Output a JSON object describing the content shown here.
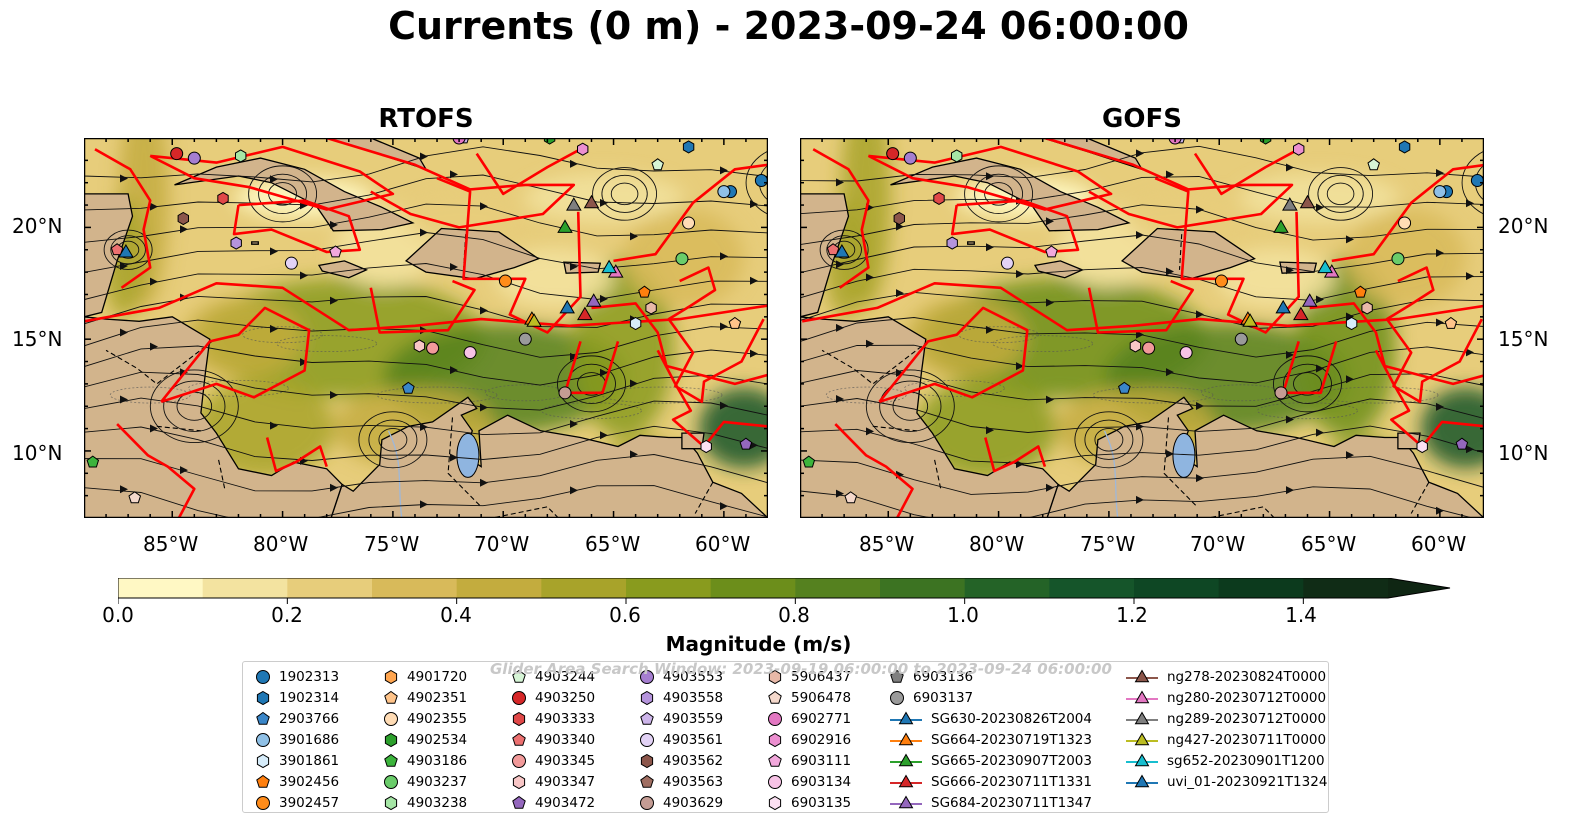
{
  "title": "Currents (0 m) - 2023-09-24 06:00:00",
  "panels": [
    {
      "title": "RTOFS"
    },
    {
      "title": "GOFS"
    }
  ],
  "x_ticks": [
    "85°W",
    "80°W",
    "75°W",
    "70°W",
    "65°W",
    "60°W"
  ],
  "y_ticks": [
    "20°N",
    "15°N",
    "10°N"
  ],
  "colorbar": {
    "label": "Magnitude (m/s)",
    "ticks": [
      "0.0",
      "0.2",
      "0.4",
      "0.6",
      "0.8",
      "1.0",
      "1.2",
      "1.4"
    ],
    "range": [
      0,
      1.5
    ],
    "colors": [
      "#fff8c4",
      "#f3e3a0",
      "#e7cd7b",
      "#d8ba5a",
      "#c3ac3e",
      "#a8a32a",
      "#899b1e",
      "#6c8e1b",
      "#55811f",
      "#3c7322",
      "#246327",
      "#15552a",
      "#0e4724",
      "#0c3a1d",
      "#102c16"
    ]
  },
  "watermark": "Glider Area Search Window: 2023-09-19 06:00:00 to 2023-09-24 06:00:00",
  "legend": [
    {
      "label": "1902313",
      "marker": "circle",
      "color": "#1f77b4"
    },
    {
      "label": "1902314",
      "marker": "hexagon",
      "color": "#1f77b4"
    },
    {
      "label": "2903766",
      "marker": "pentagon",
      "color": "#3a86c8"
    },
    {
      "label": "3901686",
      "marker": "circle",
      "color": "#8fc0e6"
    },
    {
      "label": "3901861",
      "marker": "hexagon",
      "color": "#d6ecfa"
    },
    {
      "label": "3902456",
      "marker": "pentagon",
      "color": "#ff7f0e"
    },
    {
      "label": "3902457",
      "marker": "circle",
      "color": "#ff8c1a"
    },
    {
      "label": "4901720",
      "marker": "hexagon",
      "color": "#ffa54f"
    },
    {
      "label": "4902351",
      "marker": "pentagon",
      "color": "#ffc48a"
    },
    {
      "label": "4902355",
      "marker": "circle",
      "color": "#ffdcb5"
    },
    {
      "label": "4902534",
      "marker": "hexagon",
      "color": "#2ca02c"
    },
    {
      "label": "4903186",
      "marker": "pentagon",
      "color": "#3cb43c"
    },
    {
      "label": "4903237",
      "marker": "circle",
      "color": "#6acc6a"
    },
    {
      "label": "4903238",
      "marker": "hexagon",
      "color": "#a6e6a6"
    },
    {
      "label": "4903244",
      "marker": "pentagon",
      "color": "#d6f5d6"
    },
    {
      "label": "4903250",
      "marker": "circle",
      "color": "#d62728"
    },
    {
      "label": "4903333",
      "marker": "hexagon",
      "color": "#e04848"
    },
    {
      "label": "4903340",
      "marker": "pentagon",
      "color": "#ec7070"
    },
    {
      "label": "4903345",
      "marker": "circle",
      "color": "#f29a9a"
    },
    {
      "label": "4903347",
      "marker": "hexagon",
      "color": "#f8c6c6"
    },
    {
      "label": "4903472",
      "marker": "pentagon",
      "color": "#9467bd"
    },
    {
      "label": "4903553",
      "marker": "circle",
      "color": "#a57ed0"
    },
    {
      "label": "4903558",
      "marker": "hexagon",
      "color": "#b594dc"
    },
    {
      "label": "4903559",
      "marker": "pentagon",
      "color": "#cdb5ea"
    },
    {
      "label": "4903561",
      "marker": "circle",
      "color": "#e2d2f5"
    },
    {
      "label": "4903562",
      "marker": "hexagon",
      "color": "#8c564b"
    },
    {
      "label": "4903563",
      "marker": "pentagon",
      "color": "#a06e62"
    },
    {
      "label": "4903629",
      "marker": "circle",
      "color": "#c49c94"
    },
    {
      "label": "5906437",
      "marker": "hexagon",
      "color": "#e8b9a8"
    },
    {
      "label": "5906478",
      "marker": "pentagon",
      "color": "#f5d9cc"
    },
    {
      "label": "6902771",
      "marker": "circle",
      "color": "#e377c2"
    },
    {
      "label": "6902916",
      "marker": "hexagon",
      "color": "#ec8fd0"
    },
    {
      "label": "6903111",
      "marker": "pentagon",
      "color": "#f2a8dc"
    },
    {
      "label": "6903134",
      "marker": "circle",
      "color": "#f7c3e6"
    },
    {
      "label": "6903135",
      "marker": "hexagon",
      "color": "#fbe0f2"
    },
    {
      "label": "6903136",
      "marker": "pentagon",
      "color": "#7f7f7f"
    },
    {
      "label": "6903137",
      "marker": "circle",
      "color": "#9a9a9a"
    },
    {
      "label": "SG630-20230826T2004",
      "marker": "triangle",
      "color": "#1f77b4"
    },
    {
      "label": "SG664-20230719T1323",
      "marker": "triangle",
      "color": "#ff7f0e"
    },
    {
      "label": "SG665-20230907T2003",
      "marker": "triangle",
      "color": "#2ca02c"
    },
    {
      "label": "SG666-20230711T1331",
      "marker": "triangle",
      "color": "#d62728"
    },
    {
      "label": "SG684-20230711T1347",
      "marker": "triangle",
      "color": "#9467bd"
    },
    {
      "label": "ng278-20230824T0000",
      "marker": "triangle",
      "color": "#8c564b"
    },
    {
      "label": "ng280-20230712T0000",
      "marker": "triangle",
      "color": "#e377c2"
    },
    {
      "label": "ng289-20230712T0000",
      "marker": "triangle",
      "color": "#7f7f7f"
    },
    {
      "label": "ng427-20230711T0000",
      "marker": "triangle",
      "color": "#bcbd22"
    },
    {
      "label": "sg652-20230901T1200",
      "marker": "triangle",
      "color": "#17becf"
    },
    {
      "label": "uvi_01-20230921T1324",
      "marker": "triangle",
      "color": "#1f77b4"
    }
  ],
  "map_extent": {
    "lon": [
      -89,
      -58
    ],
    "lat": [
      7,
      24
    ]
  },
  "colors": {
    "land": "#d2b48c",
    "glider_window": "#ff0000",
    "coastline": "#000000"
  }
}
